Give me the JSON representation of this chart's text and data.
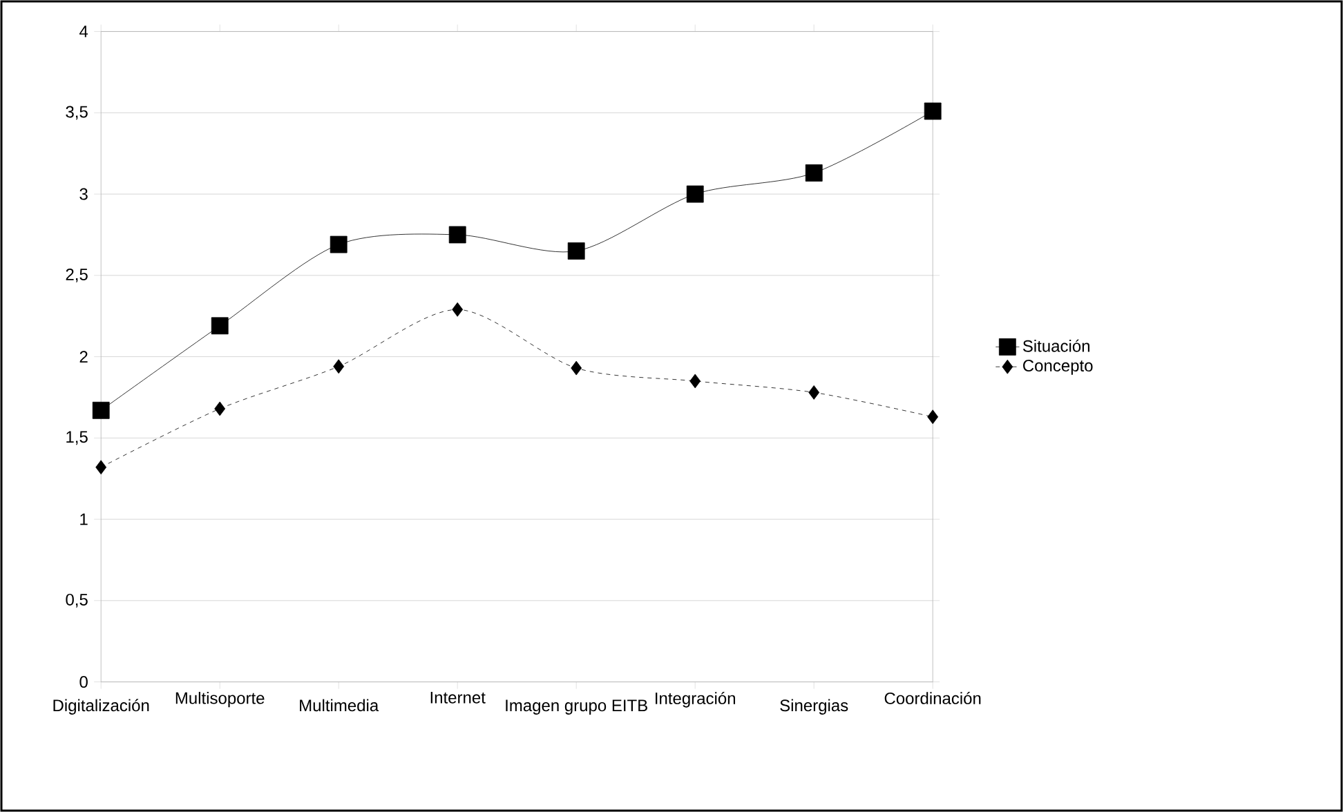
{
  "chart_data": {
    "type": "line",
    "categories": [
      "Digitalización",
      "Multisoporte",
      "Multimedia",
      "Internet",
      "Imagen grupo EITB",
      "Integración",
      "Sinergias",
      "Coordinación"
    ],
    "series": [
      {
        "name": "Situación",
        "color": "#000000",
        "marker": "square",
        "line_style": "solid",
        "values": [
          1.67,
          2.19,
          2.69,
          2.75,
          2.65,
          3.0,
          3.13,
          3.51
        ]
      },
      {
        "name": "Concepto",
        "color": "#000000",
        "marker": "diamond",
        "line_style": "dashed",
        "values": [
          1.32,
          1.68,
          1.94,
          2.29,
          1.93,
          1.85,
          1.78,
          1.63
        ]
      }
    ],
    "ylim": [
      0,
      4
    ],
    "yticks": [
      0,
      {
        "value": 0.5,
        "label": "0,5"
      },
      1,
      {
        "value": 1.5,
        "label": "1,5"
      },
      2,
      {
        "value": 2.5,
        "label": "2,5"
      },
      3,
      {
        "value": 3.5,
        "label": "3,5"
      },
      4
    ],
    "grid": "y",
    "legend": "right"
  }
}
